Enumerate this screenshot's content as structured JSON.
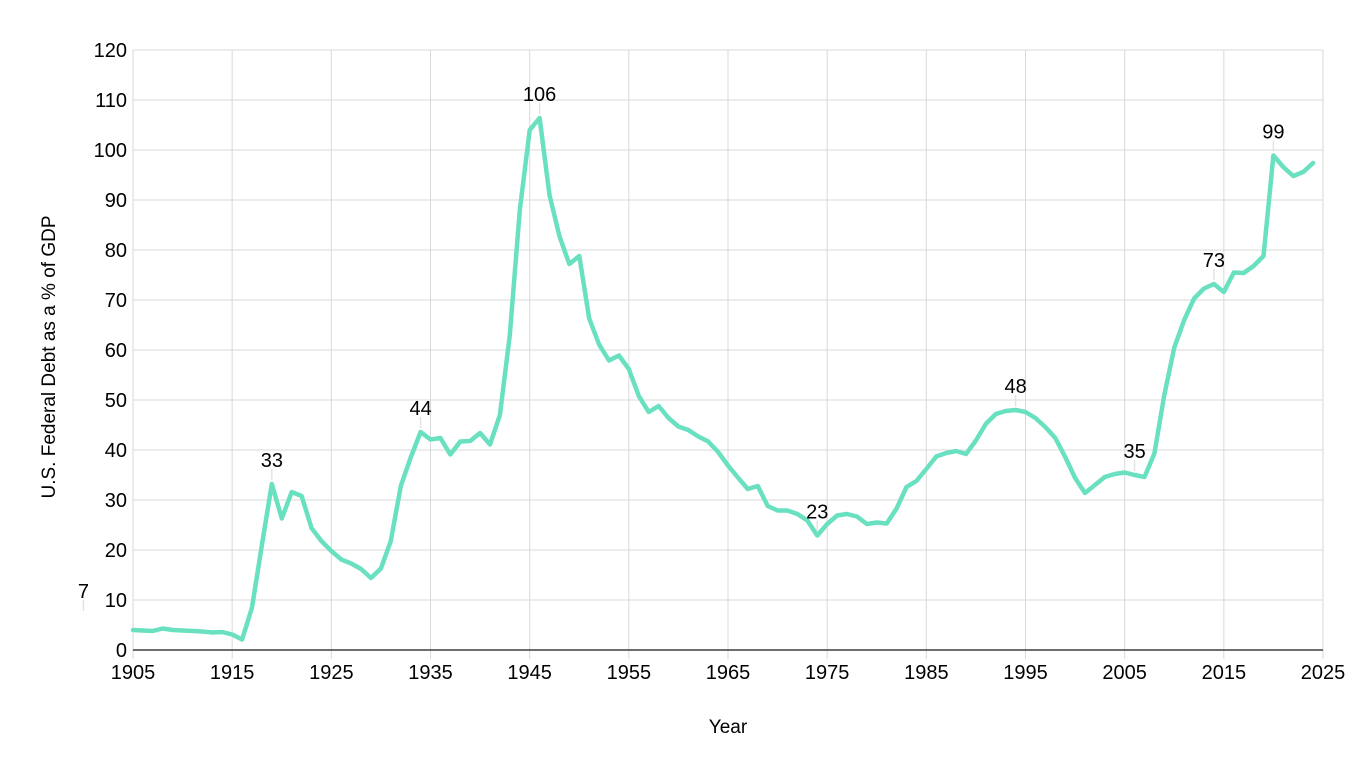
{
  "page": {
    "background": "#ffffff"
  },
  "chart_data": {
    "type": "line",
    "title": "",
    "xlabel": "Year",
    "ylabel": "U.S. Federal Debt as a % of GDP",
    "xlim": [
      1905,
      2025
    ],
    "ylim": [
      0,
      120
    ],
    "x_ticks": [
      1905,
      1915,
      1925,
      1935,
      1945,
      1955,
      1965,
      1975,
      1985,
      1995,
      2005,
      2015,
      2025
    ],
    "y_ticks": [
      0,
      10,
      20,
      30,
      40,
      50,
      60,
      70,
      80,
      90,
      100,
      110,
      120
    ],
    "grid": true,
    "legend_position": "none",
    "series": [
      {
        "name": "U.S. Federal Debt as a % of GDP",
        "color": "#69e0c0",
        "x": [
          1905,
          1906,
          1907,
          1908,
          1909,
          1910,
          1911,
          1912,
          1913,
          1914,
          1915,
          1916,
          1917,
          1918,
          1919,
          1920,
          1921,
          1922,
          1923,
          1924,
          1925,
          1926,
          1927,
          1928,
          1929,
          1930,
          1931,
          1932,
          1933,
          1934,
          1935,
          1936,
          1937,
          1938,
          1939,
          1940,
          1941,
          1942,
          1943,
          1944,
          1945,
          1946,
          1947,
          1948,
          1949,
          1950,
          1951,
          1952,
          1953,
          1954,
          1955,
          1956,
          1957,
          1958,
          1959,
          1960,
          1961,
          1962,
          1963,
          1964,
          1965,
          1966,
          1967,
          1968,
          1969,
          1970,
          1971,
          1972,
          1973,
          1974,
          1975,
          1976,
          1977,
          1978,
          1979,
          1980,
          1981,
          1982,
          1983,
          1984,
          1985,
          1986,
          1987,
          1988,
          1989,
          1990,
          1991,
          1992,
          1993,
          1994,
          1995,
          1996,
          1997,
          1998,
          1999,
          2000,
          2001,
          2002,
          2003,
          2004,
          2005,
          2006,
          2007,
          2008,
          2009,
          2010,
          2011,
          2012,
          2013,
          2014,
          2015,
          2016,
          2017,
          2018,
          2019,
          2020,
          2021,
          2022,
          2023,
          2024
        ],
        "values": [
          4.0,
          3.9,
          3.8,
          4.3,
          4.0,
          3.9,
          3.8,
          3.7,
          3.5,
          3.6,
          3.1,
          2.1,
          8.5,
          21.0,
          33.2,
          26.3,
          31.6,
          30.8,
          24.4,
          21.8,
          19.8,
          18.1,
          17.3,
          16.2,
          14.4,
          16.3,
          21.8,
          32.8,
          38.5,
          43.6,
          42.1,
          42.4,
          39.1,
          41.7,
          41.8,
          43.4,
          41.1,
          47.0,
          63.0,
          88.0,
          104.0,
          106.4,
          91.0,
          82.8,
          77.2,
          78.8,
          66.3,
          61.1,
          57.9,
          58.9,
          56.2,
          50.8,
          47.6,
          48.8,
          46.4,
          44.7,
          44.0,
          42.7,
          41.7,
          39.6,
          36.9,
          34.5,
          32.2,
          32.8,
          28.8,
          27.9,
          27.9,
          27.2,
          25.9,
          22.9,
          25.2,
          26.9,
          27.2,
          26.7,
          25.2,
          25.5,
          25.3,
          28.3,
          32.6,
          33.8,
          36.2,
          38.7,
          39.4,
          39.8,
          39.2,
          41.9,
          45.2,
          47.2,
          47.8,
          48.0,
          47.6,
          46.4,
          44.6,
          42.4,
          38.6,
          34.4,
          31.4,
          33.0,
          34.6,
          35.2,
          35.5,
          35.0,
          34.6,
          39.3,
          51.0,
          60.5,
          66.0,
          70.3,
          72.3,
          73.2,
          71.6,
          75.5,
          75.4,
          76.8,
          78.8,
          98.9,
          96.6,
          94.8,
          95.6,
          97.4
        ]
      }
    ],
    "annotations": [
      {
        "label": "7",
        "year": 1900,
        "value": 7
      },
      {
        "label": "33",
        "year": 1919,
        "value": 33.2
      },
      {
        "label": "44",
        "year": 1934,
        "value": 43.6
      },
      {
        "label": "106",
        "year": 1946,
        "value": 106.4
      },
      {
        "label": "23",
        "year": 1974,
        "value": 22.9
      },
      {
        "label": "48",
        "year": 1994,
        "value": 48.0
      },
      {
        "label": "35",
        "year": 2006,
        "value": 35.0
      },
      {
        "label": "73",
        "year": 2014,
        "value": 73.2
      },
      {
        "label": "99",
        "year": 2020,
        "value": 98.9
      }
    ],
    "colors": {
      "line": "#69e0c0",
      "grid": "#d9d9d9",
      "axis": "#3f3f3f",
      "text": "#000000",
      "leader": "#e2e2e2",
      "background": "#ffffff"
    }
  }
}
